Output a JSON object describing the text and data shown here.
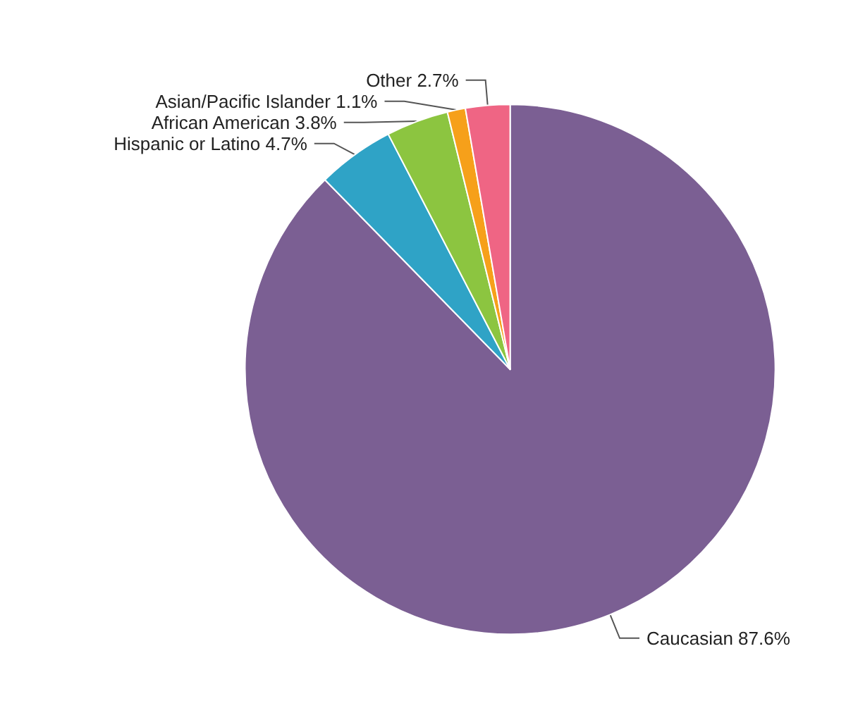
{
  "chart_data": {
    "type": "pie",
    "categories": [
      "Caucasian",
      "Hispanic or Latino",
      "African American",
      "Asian/Pacific Islander",
      "Other"
    ],
    "values": [
      87.6,
      4.7,
      3.8,
      1.1,
      2.7
    ],
    "value_labels": [
      "87.6%",
      "4.7%",
      "3.8%",
      "1.1%",
      "2.7%"
    ],
    "colors": [
      "#7b5f93",
      "#2fa3c6",
      "#8cc540",
      "#f6a01a",
      "#ef6584"
    ]
  }
}
